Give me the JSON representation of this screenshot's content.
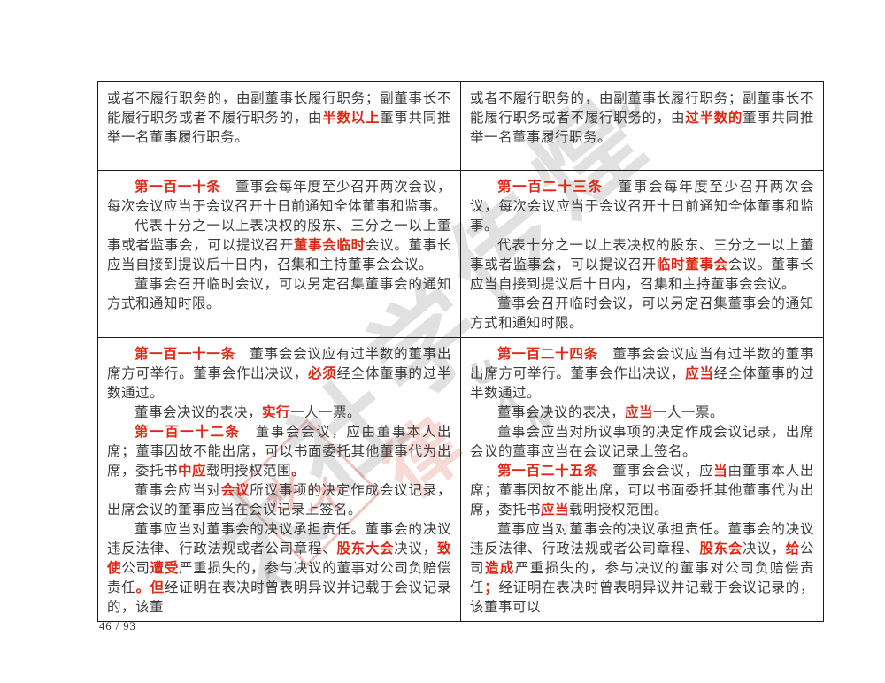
{
  "page": {
    "number_label": "46 / 93"
  },
  "watermark": {
    "brush_chars": [
      "煌",
      "传",
      "学",
      "社",
      "大"
    ],
    "letters": [
      "W",
      "K",
      "U",
      "A",
      "N"
    ],
    "seal_text": "社大",
    "red_brush_char": "律",
    "gray_color": "#696969",
    "seal_color": "#d6493c"
  },
  "colors": {
    "highlight_red": "#e02717",
    "body_text": "#3c3c3c"
  },
  "table": {
    "rows": [
      {
        "cells": [
          {
            "paragraphs": [
              {
                "indent": false,
                "runs": [
                  {
                    "text": "或者不履行职务的，由副董事长履行职务；副董事长不能履行职务或者不履行职务的，由"
                  },
                  {
                    "text": "半数以上",
                    "style": "red-bold"
                  },
                  {
                    "text": "董事共同推举一名董事履行职务。"
                  }
                ]
              }
            ]
          },
          {
            "paragraphs": [
              {
                "indent": false,
                "runs": [
                  {
                    "text": "或者不履行职务的，由副董事长履行职务；副董事长不能履行职务或者不履行职务的，由"
                  },
                  {
                    "text": "过半数的",
                    "style": "red-bold"
                  },
                  {
                    "text": "董事共同推举一名董事履行职务。"
                  }
                ]
              }
            ]
          }
        ]
      },
      {
        "cells": [
          {
            "paragraphs": [
              {
                "indent": true,
                "runs": [
                  {
                    "text": "第一百一十条",
                    "style": "red-bold"
                  },
                  {
                    "text": "　董事会每年度至少召开两次会议，每次会议应当于会议召开十日前通知全体董事和监事。"
                  }
                ]
              },
              {
                "indent": true,
                "runs": [
                  {
                    "text": "代表十分之一以上表决权的股东、三分之一以上董事或者监事会，可以提议召开"
                  },
                  {
                    "text": "董事会临时",
                    "style": "red-bold"
                  },
                  {
                    "text": "会议。董事长应当自接到提议后十日内，召集和主持董事会会议。"
                  }
                ]
              },
              {
                "indent": true,
                "runs": [
                  {
                    "text": "董事会召开临时会议，可以另定召集董事会的通知方式和通知时限。"
                  }
                ]
              }
            ]
          },
          {
            "paragraphs": [
              {
                "indent": true,
                "runs": [
                  {
                    "text": "第一百二十三条",
                    "style": "red-bold"
                  },
                  {
                    "text": "　董事会每年度至少召开两次会议，每次会议应当于会议召开十日前通知全体董事和监事。"
                  }
                ]
              },
              {
                "indent": true,
                "runs": [
                  {
                    "text": "代表十分之一以上表决权的股东、三分之一以上董事或者监事会，可以提议召开"
                  },
                  {
                    "text": "临时董事会",
                    "style": "red-bold"
                  },
                  {
                    "text": "会议。董事长应当自接到提议后十日内，召集和主持董事会会议。"
                  }
                ]
              },
              {
                "indent": true,
                "runs": [
                  {
                    "text": "董事会召开临时会议，可以另定召集董事会的通知方式和通知时限。"
                  }
                ]
              }
            ]
          }
        ]
      },
      {
        "cells": [
          {
            "paragraphs": [
              {
                "indent": true,
                "runs": [
                  {
                    "text": "第一百一十一条",
                    "style": "red-bold"
                  },
                  {
                    "text": "　董事会会议应有过半数的董事出席方可举行。董事会作出决议，"
                  },
                  {
                    "text": "必须",
                    "style": "red-bold"
                  },
                  {
                    "text": "经全体董事的过半数通过。"
                  }
                ]
              },
              {
                "indent": true,
                "runs": [
                  {
                    "text": "董事会决议的表决，"
                  },
                  {
                    "text": "实行",
                    "style": "red-bold"
                  },
                  {
                    "text": "一人一票。"
                  }
                ]
              },
              {
                "indent": true,
                "runs": [
                  {
                    "text": "第一百一十二条",
                    "style": "red-bold"
                  },
                  {
                    "text": "　董事会会议，应由董事本人出席；董事因故不能出席，可以书面委托其他董事代为出席，委托书"
                  },
                  {
                    "text": "中应",
                    "style": "red-bold"
                  },
                  {
                    "text": "载明授权范围"
                  },
                  {
                    "text": "。",
                    "style": "red-bold"
                  }
                ]
              },
              {
                "indent": true,
                "runs": [
                  {
                    "text": "董事会应当对"
                  },
                  {
                    "text": "会议",
                    "style": "red-bold"
                  },
                  {
                    "text": "所议事项的决定作成会议记录，出席会议的董事应当在会议记录上签名。"
                  }
                ]
              },
              {
                "indent": true,
                "runs": [
                  {
                    "text": "董事应当对董事会的决议承担责任。董事会的决议违反法律、行政法规或者公司章程、"
                  },
                  {
                    "text": "股东大会",
                    "style": "red-bold"
                  },
                  {
                    "text": "决议，"
                  },
                  {
                    "text": "致使",
                    "style": "red-bold"
                  },
                  {
                    "text": "公司"
                  },
                  {
                    "text": "遭受",
                    "style": "red-bold"
                  },
                  {
                    "text": "严重损失的，参与决议的董事对公司负赔偿责任"
                  },
                  {
                    "text": "。但",
                    "style": "red-bold"
                  },
                  {
                    "text": "经证明在表决时曾表明异议并记载于会议记录的，该董"
                  }
                ]
              }
            ]
          },
          {
            "paragraphs": [
              {
                "indent": true,
                "runs": [
                  {
                    "text": "第一百二十四条",
                    "style": "red-bold"
                  },
                  {
                    "text": "　董事会会议应当有过半数的董事出席方可举行。董事会作出决议，"
                  },
                  {
                    "text": "应当",
                    "style": "red-bold"
                  },
                  {
                    "text": "经全体董事的过半数通过。"
                  }
                ]
              },
              {
                "indent": true,
                "runs": [
                  {
                    "text": "董事会决议的表决，"
                  },
                  {
                    "text": "应当",
                    "style": "red-bold"
                  },
                  {
                    "text": "一人一票。"
                  }
                ]
              },
              {
                "indent": true,
                "runs": [
                  {
                    "text": "董事会应当对所议事项的决定作成会议记录，出席会议的董事应当在会议记录上签名。"
                  }
                ]
              },
              {
                "indent": true,
                "runs": [
                  {
                    "text": "第一百二十五条",
                    "style": "red-bold"
                  },
                  {
                    "text": "　董事会会议，应"
                  },
                  {
                    "text": "当",
                    "style": "red-bold"
                  },
                  {
                    "text": "由董事本人出席；董事因故不能出席，可以书面委托其他董事代为出席，委托书"
                  },
                  {
                    "text": "应当",
                    "style": "red-bold"
                  },
                  {
                    "text": "载明授权范围。"
                  }
                ]
              },
              {
                "indent": true,
                "runs": [
                  {
                    "text": "董事应当对董事会的决议承担责任。董事会的决议违反法律、行政法规或者公司章程、"
                  },
                  {
                    "text": "股东会",
                    "style": "red-bold"
                  },
                  {
                    "text": "决议，"
                  },
                  {
                    "text": "给",
                    "style": "red-bold"
                  },
                  {
                    "text": "公司"
                  },
                  {
                    "text": "造成",
                    "style": "red-bold"
                  },
                  {
                    "text": "严重损失的，参与决议的董事对公司负赔偿责任"
                  },
                  {
                    "text": "；",
                    "style": "red-bold"
                  },
                  {
                    "text": "经证明在表决时曾表明异议并记载于会议记录的，该董事可以"
                  }
                ]
              }
            ]
          }
        ]
      }
    ]
  }
}
